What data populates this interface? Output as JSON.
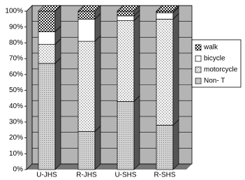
{
  "chart_data": {
    "type": "bar",
    "stacked": true,
    "categories": [
      "U-JHS",
      "R-JHS",
      "U-SHS",
      "R-SHS"
    ],
    "series": [
      {
        "name": "Non- T",
        "color": "#d0d0d0",
        "values": [
          67,
          24,
          43,
          28
        ]
      },
      {
        "name": "motorcycle",
        "color": "#e8e8e8",
        "values": [
          12,
          57,
          51,
          67
        ]
      },
      {
        "name": "bicycle",
        "color": "#ffffff",
        "values": [
          8,
          14,
          3,
          4
        ]
      },
      {
        "name": "walk",
        "color": "#ffffff",
        "values": [
          13,
          5,
          3,
          1
        ]
      }
    ],
    "ylim": [
      0,
      100
    ],
    "yticks": [
      {
        "value": 0,
        "label": "0%"
      },
      {
        "value": 10,
        "label": "10%"
      },
      {
        "value": 20,
        "label": "20%"
      },
      {
        "value": 30,
        "label": "30%"
      },
      {
        "value": 40,
        "label": "40%"
      },
      {
        "value": 50,
        "label": "50%"
      },
      {
        "value": 60,
        "label": "60%"
      },
      {
        "value": 70,
        "label": "70%"
      },
      {
        "value": 80,
        "label": "80%"
      },
      {
        "value": 90,
        "label": "90%"
      },
      {
        "value": 100,
        "label": "100%"
      }
    ],
    "grid": true
  }
}
